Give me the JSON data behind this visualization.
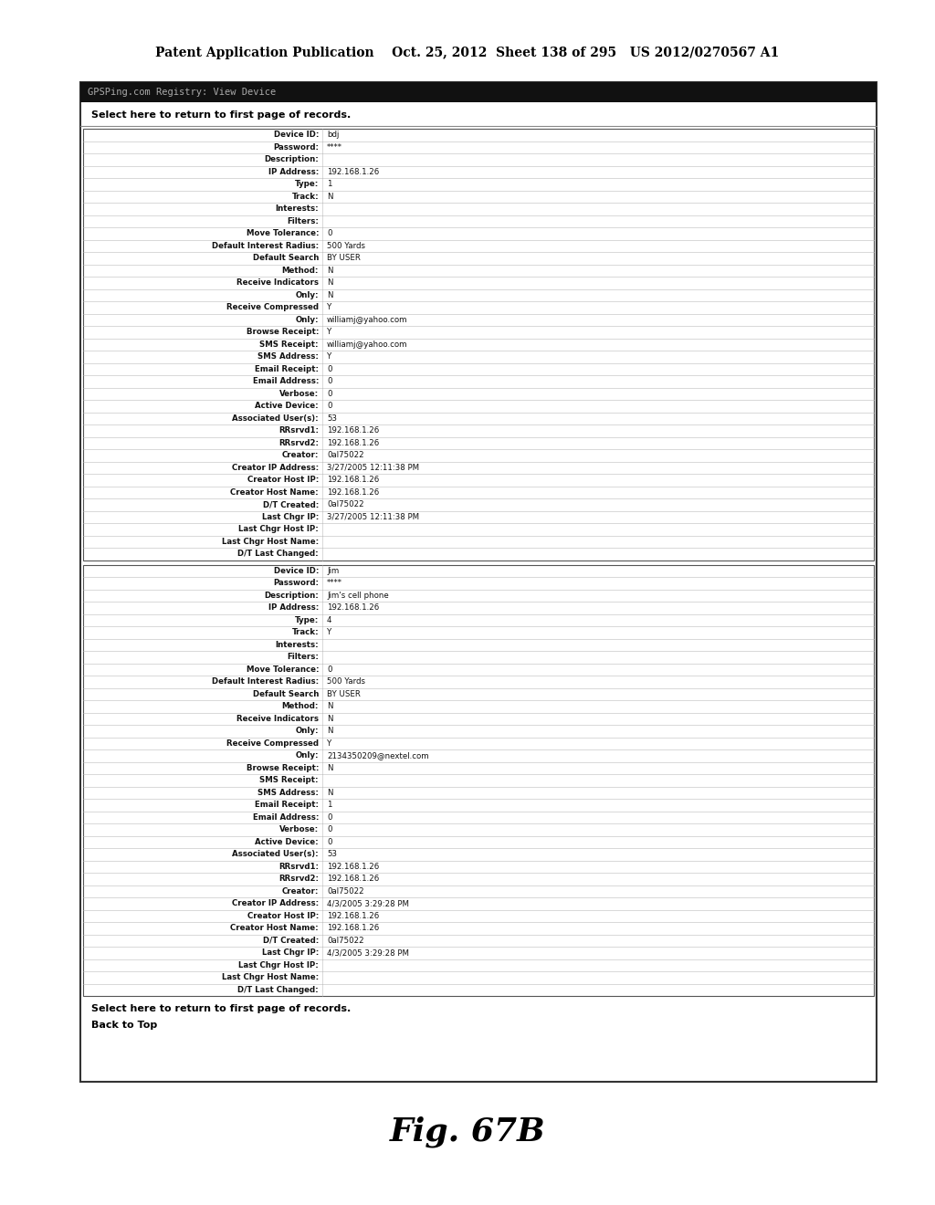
{
  "header_text": "Patent Application Publication    Oct. 25, 2012  Sheet 138 of 295   US 2012/0270567 A1",
  "title_bar": "GPSPing.com Registry: View Device",
  "select_link": "Select here to return to first page of records.",
  "back_to_top": "Back to Top",
  "fig_label": "Fig. 67B",
  "record1": [
    [
      "Device ID:",
      "bdj"
    ],
    [
      "Password:",
      "****"
    ],
    [
      "Description:",
      ""
    ],
    [
      "IP Address:",
      "192.168.1.26"
    ],
    [
      "Type:",
      "1"
    ],
    [
      "Track:",
      "N"
    ],
    [
      "Interests:",
      ""
    ],
    [
      "Filters:",
      ""
    ],
    [
      "Move Tolerance:",
      "0"
    ],
    [
      "Default Interest Radius:",
      "500 Yards"
    ],
    [
      "Default Search",
      "BY USER"
    ],
    [
      "Method:",
      "N"
    ],
    [
      "Receive Indicators",
      "N"
    ],
    [
      "Only:",
      "N"
    ],
    [
      "Receive Compressed",
      "Y"
    ],
    [
      "Only:",
      "williamj@yahoo.com"
    ],
    [
      "Browse Receipt:",
      "Y"
    ],
    [
      "SMS Receipt:",
      "williamj@yahoo.com"
    ],
    [
      "SMS Address:",
      "Y"
    ],
    [
      "Email Receipt:",
      "0"
    ],
    [
      "Email Address:",
      "0"
    ],
    [
      "Verbose:",
      "0"
    ],
    [
      "Active Device:",
      "0"
    ],
    [
      "Associated User(s):",
      "53"
    ],
    [
      "RRsrvd1:",
      "192.168.1.26"
    ],
    [
      "RRsrvd2:",
      "192.168.1.26"
    ],
    [
      "Creator:",
      "0al75022"
    ],
    [
      "Creator IP Address:",
      "3/27/2005 12:11:38 PM"
    ],
    [
      "Creator Host IP:",
      "192.168.1.26"
    ],
    [
      "Creator Host Name:",
      "192.168.1.26"
    ],
    [
      "D/T Created:",
      "0al75022"
    ],
    [
      "Last Chgr IP:",
      "3/27/2005 12:11:38 PM"
    ],
    [
      "Last Chgr Host IP:",
      ""
    ],
    [
      "Last Chgr Host Name:",
      ""
    ],
    [
      "D/T Last Changed:",
      ""
    ]
  ],
  "record2": [
    [
      "Device ID:",
      "Jim"
    ],
    [
      "Password:",
      "****"
    ],
    [
      "Description:",
      "Jim's cell phone"
    ],
    [
      "IP Address:",
      "192.168.1.26"
    ],
    [
      "Type:",
      "4"
    ],
    [
      "Track:",
      "Y"
    ],
    [
      "Interests:",
      ""
    ],
    [
      "Filters:",
      ""
    ],
    [
      "Move Tolerance:",
      "0"
    ],
    [
      "Default Interest Radius:",
      "500 Yards"
    ],
    [
      "Default Search",
      "BY USER"
    ],
    [
      "Method:",
      "N"
    ],
    [
      "Receive Indicators",
      "N"
    ],
    [
      "Only:",
      "N"
    ],
    [
      "Receive Compressed",
      "Y"
    ],
    [
      "Only:",
      "2134350209@nextel.com"
    ],
    [
      "Browse Receipt:",
      "N"
    ],
    [
      "SMS Receipt:",
      ""
    ],
    [
      "SMS Address:",
      "N"
    ],
    [
      "Email Receipt:",
      "1"
    ],
    [
      "Email Address:",
      "0"
    ],
    [
      "Verbose:",
      "0"
    ],
    [
      "Active Device:",
      "0"
    ],
    [
      "Associated User(s):",
      "53"
    ],
    [
      "RRsrvd1:",
      "192.168.1.26"
    ],
    [
      "RRsrvd2:",
      "192.168.1.26"
    ],
    [
      "Creator:",
      "0al75022"
    ],
    [
      "Creator IP Address:",
      "4/3/2005 3:29:28 PM"
    ],
    [
      "Creator Host IP:",
      "192.168.1.26"
    ],
    [
      "Creator Host Name:",
      "192.168.1.26"
    ],
    [
      "D/T Created:",
      "0al75022"
    ],
    [
      "Last Chgr IP:",
      "4/3/2005 3:29:28 PM"
    ],
    [
      "Last Chgr Host IP:",
      ""
    ],
    [
      "Last Chgr Host Name:",
      ""
    ],
    [
      "D/T Last Changed:",
      ""
    ]
  ],
  "bg_color": "#ffffff",
  "title_bar_bg": "#111111",
  "title_bar_fg": "#aaaaaa",
  "border_color": "#444444",
  "row_line_color": "#bbbbbb",
  "col_div_color": "#bbbbbb"
}
